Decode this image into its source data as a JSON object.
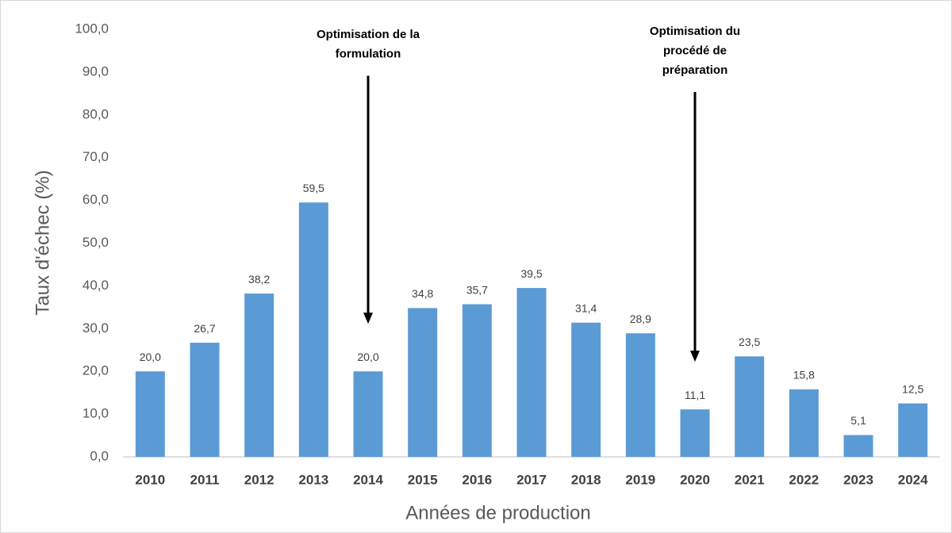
{
  "chart_data": {
    "type": "bar",
    "categories": [
      "2010",
      "2011",
      "2012",
      "2013",
      "2014",
      "2015",
      "2016",
      "2017",
      "2018",
      "2019",
      "2020",
      "2021",
      "2022",
      "2023",
      "2024"
    ],
    "values": [
      20.0,
      26.7,
      38.2,
      59.5,
      20.0,
      34.8,
      35.7,
      39.5,
      31.4,
      28.9,
      11.1,
      23.5,
      15.8,
      5.1,
      12.5
    ],
    "value_labels": [
      "20,0",
      "26,7",
      "38,2",
      "59,5",
      "20,0",
      "34,8",
      "35,7",
      "39,5",
      "31,4",
      "28,9",
      "11,1",
      "23,5",
      "15,8",
      "5,1",
      "12,5"
    ],
    "color": "#5b9bd5",
    "ylim": [
      0,
      100
    ],
    "yticks": [
      {
        "value": 0,
        "label": "0,0"
      },
      {
        "value": 10,
        "label": "10,0"
      },
      {
        "value": 20,
        "label": "20,0"
      },
      {
        "value": 30,
        "label": "30,0"
      },
      {
        "value": 40,
        "label": "40,0"
      },
      {
        "value": 50,
        "label": "50,0"
      },
      {
        "value": 60,
        "label": "60,0"
      },
      {
        "value": 70,
        "label": "70,0"
      },
      {
        "value": 80,
        "label": "80,0"
      },
      {
        "value": 90,
        "label": "90,0"
      },
      {
        "value": 100,
        "label": "100,0"
      }
    ],
    "y_label": "Taux d'échec  (%)",
    "x_label": "Années de production",
    "grid": false,
    "annotations": [
      {
        "lines": [
          "Optimisation de la",
          "formulation"
        ],
        "x": "2014"
      },
      {
        "lines": [
          "Optimisation du",
          "procédé de",
          "préparation"
        ],
        "x": "2020"
      }
    ]
  }
}
